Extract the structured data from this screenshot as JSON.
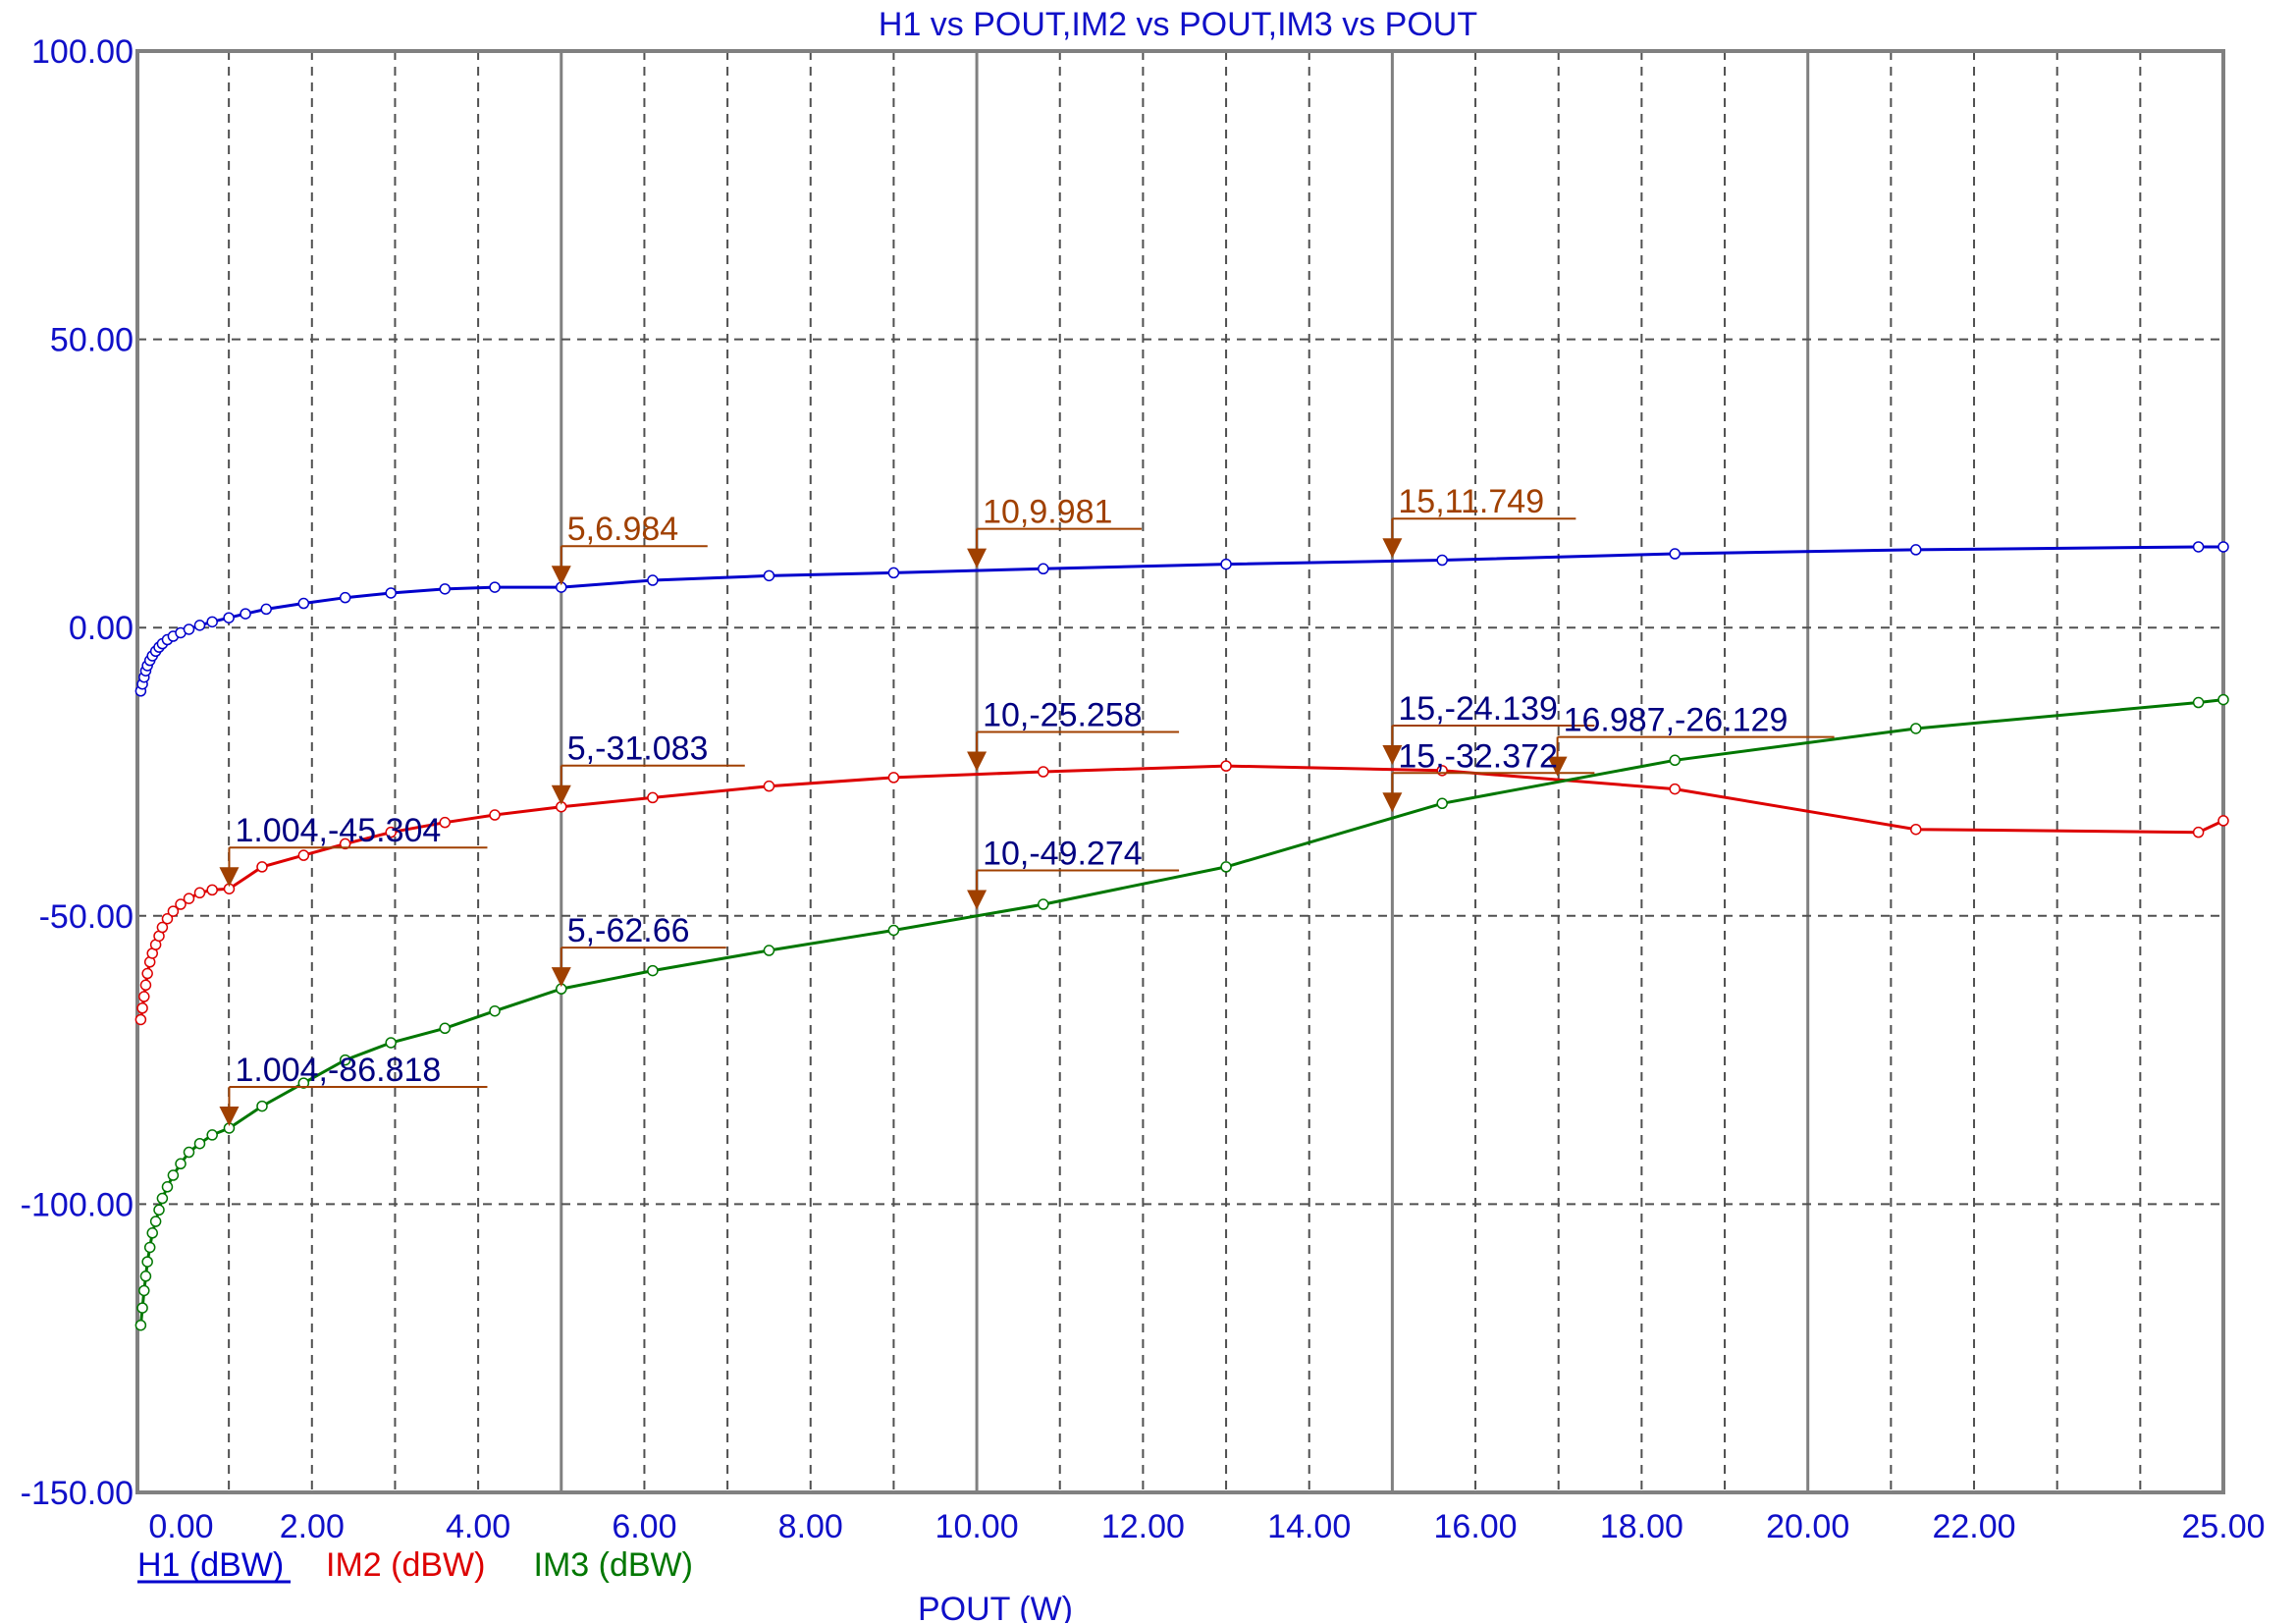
{
  "chart_data": {
    "type": "line",
    "title": "H1 vs POUT,IM2 vs POUT,IM3 vs POUT",
    "xlabel": "POUT (W)",
    "ylabel": "",
    "xlim": [
      -0.1,
      25
    ],
    "ylim": [
      -150,
      100
    ],
    "grid": true,
    "legend_position": "bottom-left",
    "x_ticks": [
      0,
      2,
      4,
      6,
      8,
      10,
      12,
      14,
      16,
      18,
      20,
      22,
      25
    ],
    "x_tick_labels": [
      "0.00",
      "2.00",
      "4.00",
      "6.00",
      "8.00",
      "10.00",
      "12.00",
      "14.00",
      "16.00",
      "18.00",
      "20.00",
      "22.00",
      "25.00"
    ],
    "y_ticks": [
      100,
      50,
      0,
      -50,
      -100,
      -150
    ],
    "y_tick_labels": [
      "100.00",
      "50.00",
      "0.00",
      "-50.00",
      "-100.00",
      "-150.00"
    ],
    "minor_x_gridlines": [
      1,
      2,
      3,
      4,
      6,
      7,
      8,
      9,
      11,
      12,
      13,
      14,
      16,
      17,
      18,
      19,
      21,
      22,
      23,
      24
    ],
    "major_x_gridlines": [
      5,
      10,
      15,
      20
    ],
    "colors": {
      "axis_text": "#1010c8",
      "marker_red_text": "#a04000",
      "marker_blue_text": "#000080",
      "marker_arrow": "#a04000",
      "grid": "#505050",
      "major_grid": "#808080"
    },
    "series": [
      {
        "name": "H1 (dBW)",
        "color": "#0000cc",
        "x": [
          -0.06,
          -0.04,
          -0.02,
          0.0,
          0.02,
          0.05,
          0.08,
          0.12,
          0.16,
          0.2,
          0.26,
          0.33,
          0.42,
          0.52,
          0.65,
          0.8,
          1.0,
          1.2,
          1.45,
          1.9,
          2.4,
          2.95,
          3.6,
          4.2,
          5.0,
          6.1,
          7.5,
          9.0,
          10.8,
          13.0,
          15.6,
          18.4,
          21.3,
          24.7,
          25.0
        ],
        "y": [
          -11,
          -9.8,
          -8.6,
          -7.5,
          -6.6,
          -5.7,
          -4.9,
          -4.1,
          -3.4,
          -2.8,
          -2.1,
          -1.5,
          -0.9,
          -0.3,
          0.4,
          1.0,
          1.7,
          2.4,
          3.2,
          4.2,
          5.2,
          6.0,
          6.7,
          7.0,
          7.0,
          8.2,
          9.0,
          9.5,
          10.2,
          11.0,
          11.7,
          12.8,
          13.5,
          14.0,
          14.0
        ]
      },
      {
        "name": "IM2 (dBW)",
        "color": "#dd0000",
        "x": [
          -0.06,
          -0.04,
          -0.02,
          0.0,
          0.02,
          0.05,
          0.08,
          0.12,
          0.16,
          0.2,
          0.26,
          0.33,
          0.42,
          0.52,
          0.65,
          0.8,
          1.004,
          1.4,
          1.9,
          2.4,
          2.95,
          3.6,
          4.2,
          5.0,
          6.1,
          7.5,
          9.0,
          10.8,
          13.0,
          15.6,
          18.4,
          21.3,
          24.7,
          25.0
        ],
        "y": [
          -68,
          -66,
          -64,
          -62,
          -60,
          -58,
          -56.5,
          -55,
          -53.5,
          -52,
          -50.5,
          -49.2,
          -48,
          -47,
          -46,
          -45.5,
          -45.304,
          -41.5,
          -39.5,
          -37.5,
          -35.5,
          -33.8,
          -32.5,
          -31.083,
          -29.5,
          -27.5,
          -26,
          -25.0,
          -24.0,
          -24.8,
          -28,
          -35,
          -35.5,
          -33.5
        ]
      },
      {
        "name": "IM3 (dBW)",
        "color": "#007700",
        "x": [
          -0.06,
          -0.04,
          -0.02,
          0.0,
          0.02,
          0.05,
          0.08,
          0.12,
          0.16,
          0.2,
          0.26,
          0.33,
          0.42,
          0.52,
          0.65,
          0.8,
          1.004,
          1.4,
          1.9,
          2.4,
          2.95,
          3.6,
          4.2,
          5.0,
          6.1,
          7.5,
          9.0,
          10.8,
          13.0,
          15.6,
          18.4,
          21.3,
          24.7,
          25.0
        ],
        "y": [
          -121,
          -118,
          -115,
          -112.5,
          -110,
          -107.5,
          -105,
          -103,
          -101,
          -99,
          -97,
          -95,
          -93,
          -91,
          -89.5,
          -88,
          -86.818,
          -83,
          -79,
          -75,
          -72,
          -69.5,
          -66.5,
          -62.66,
          -59.5,
          -56,
          -52.5,
          -48,
          -41.5,
          -30.5,
          -23,
          -17.5,
          -13,
          -12.5
        ]
      }
    ],
    "markers": [
      {
        "label": "5,6.984",
        "x": 5,
        "y": 6.984,
        "style": "brown"
      },
      {
        "label": "10,9.981",
        "x": 10,
        "y": 9.981,
        "style": "brown"
      },
      {
        "label": "15,11.749",
        "x": 15,
        "y": 11.749,
        "style": "brown"
      },
      {
        "label": "5,-31.083",
        "x": 5,
        "y": -31.083,
        "style": "navy"
      },
      {
        "label": "10,-25.258",
        "x": 10,
        "y": -25.258,
        "style": "navy"
      },
      {
        "label": "15,-24.139",
        "x": 15,
        "y": -24.139,
        "style": "navy"
      },
      {
        "label": "16.987,-26.129",
        "x": 16.987,
        "y": -26.129,
        "style": "navy"
      },
      {
        "label": "15,-32.372",
        "x": 15,
        "y": -32.372,
        "style": "navy"
      },
      {
        "label": "1.004,-45.304",
        "x": 1.004,
        "y": -45.304,
        "style": "navy"
      },
      {
        "label": "10,-49.274",
        "x": 10,
        "y": -49.274,
        "style": "navy"
      },
      {
        "label": "5,-62.66",
        "x": 5,
        "y": -62.66,
        "style": "navy"
      },
      {
        "label": "1.004,-86.818",
        "x": 1.004,
        "y": -86.818,
        "style": "navy"
      }
    ]
  }
}
